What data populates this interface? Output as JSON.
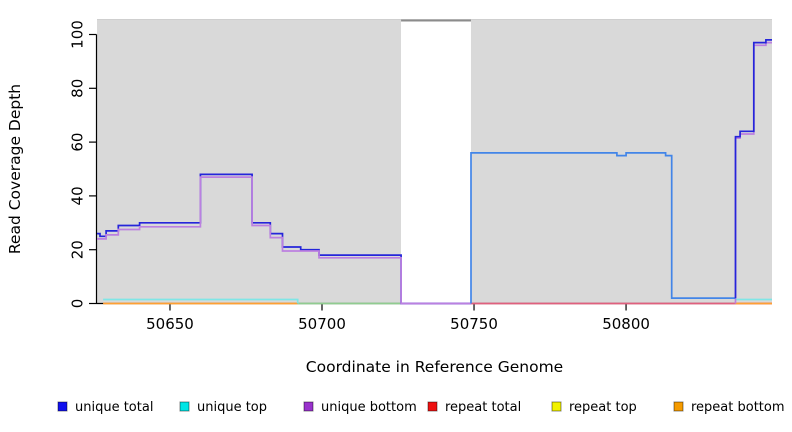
{
  "chart_data": {
    "type": "line",
    "title": "",
    "xlabel": "Coordinate in Reference Genome",
    "ylabel": "Read Coverage Depth",
    "x_ticks": [
      50650,
      50700,
      50750,
      50800
    ],
    "y_ticks": [
      0,
      20,
      40,
      60,
      80,
      100
    ],
    "x_range": [
      50626,
      50848
    ],
    "y_range": [
      0,
      105
    ],
    "grid": "off",
    "legend_position": "bottom",
    "background_regions": [
      {
        "name": "covered-region-left",
        "from": 50626,
        "to": 50726,
        "color": "#D9D9D9"
      },
      {
        "name": "uncovered-gap",
        "from": 50726,
        "to": 50749,
        "color": "#FFFFFF",
        "cap_color": "#8C8C8C"
      },
      {
        "name": "covered-region-right",
        "from": 50749,
        "to": 50848,
        "color": "#D9D9D9"
      }
    ],
    "legend": [
      {
        "label": "unique total",
        "color": "#1111EE"
      },
      {
        "label": "unique top",
        "color": "#00E5E5"
      },
      {
        "label": "unique bottom",
        "color": "#9932CC"
      },
      {
        "label": "repeat total",
        "color": "#EE1111"
      },
      {
        "label": "repeat top",
        "color": "#F2F200"
      },
      {
        "label": "repeat bottom",
        "color": "#F59B00"
      }
    ],
    "series": [
      {
        "name": "repeat+unique top overlap (zero)",
        "color": "#90CC90",
        "points": [
          [
            50692,
            0
          ],
          [
            50726,
            0
          ]
        ]
      },
      {
        "name": "repeat total",
        "color": "#E0607E",
        "points": [
          [
            50749,
            0
          ],
          [
            50848,
            0
          ]
        ]
      },
      {
        "name": "repeat bottom (left)",
        "color": "#FFA033",
        "points": [
          [
            50628,
            0
          ],
          [
            50692,
            0
          ]
        ]
      },
      {
        "name": "repeat bottom (right)",
        "color": "#FFA033",
        "points": [
          [
            50836,
            0
          ],
          [
            50848,
            0
          ]
        ]
      },
      {
        "name": "unique top (left)",
        "color": "#7FE6E6",
        "points": [
          [
            50628,
            1.5
          ],
          [
            50692,
            1.5
          ],
          [
            50692,
            0
          ]
        ]
      },
      {
        "name": "unique top (right)",
        "color": "#7FE6E6",
        "points": [
          [
            50836,
            1.5
          ],
          [
            50848,
            1.5
          ]
        ]
      },
      {
        "name": "unique total (left)",
        "color": "#2525DA",
        "points": [
          [
            50626,
            26
          ],
          [
            50627,
            25
          ],
          [
            50629,
            27
          ],
          [
            50633,
            29
          ],
          [
            50640,
            30
          ],
          [
            50660,
            48
          ],
          [
            50677,
            30
          ],
          [
            50683,
            26
          ],
          [
            50687,
            21
          ],
          [
            50693,
            20
          ],
          [
            50699,
            18
          ],
          [
            50726,
            0
          ],
          [
            50749,
            0
          ]
        ]
      },
      {
        "name": "unique bottom (left)",
        "color": "#BC80E0",
        "points": [
          [
            50626,
            24
          ],
          [
            50629,
            25.5
          ],
          [
            50633,
            27.5
          ],
          [
            50640,
            28.5
          ],
          [
            50660,
            47
          ],
          [
            50677,
            29
          ],
          [
            50683,
            24.5
          ],
          [
            50687,
            19.5
          ],
          [
            50699,
            17
          ],
          [
            50726,
            0
          ],
          [
            50749,
            0
          ]
        ]
      },
      {
        "name": "unique bottom (right)",
        "color": "#BC80E0",
        "points": [
          [
            50836,
            0
          ],
          [
            50836,
            61.5
          ],
          [
            50837.5,
            63
          ],
          [
            50842,
            96
          ],
          [
            50846,
            97
          ],
          [
            50848,
            97
          ]
        ]
      },
      {
        "name": "unique total (plateau)",
        "color": "#4285E8",
        "points": [
          [
            50749,
            0
          ],
          [
            50749,
            56
          ],
          [
            50797,
            55
          ],
          [
            50800,
            56
          ],
          [
            50813,
            55
          ],
          [
            50815,
            2
          ],
          [
            50836,
            2
          ]
        ]
      },
      {
        "name": "unique total (right)",
        "color": "#2525DA",
        "points": [
          [
            50836,
            2
          ],
          [
            50836,
            62
          ],
          [
            50837.5,
            64
          ],
          [
            50842,
            97
          ],
          [
            50846,
            98
          ],
          [
            50848,
            98
          ]
        ]
      }
    ]
  }
}
